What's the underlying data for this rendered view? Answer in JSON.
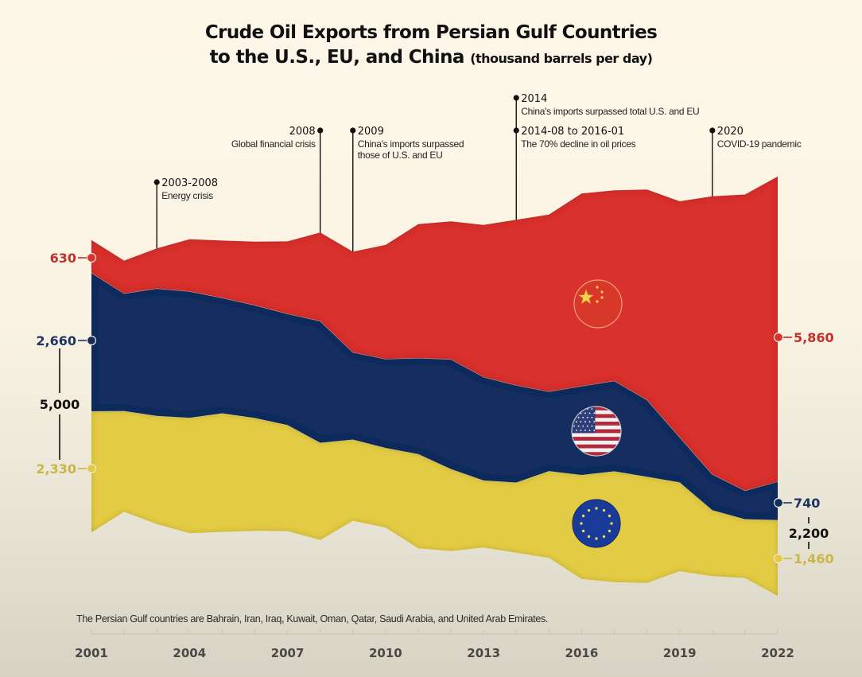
{
  "title": {
    "line1": "Crude Oil Exports from Persian Gulf Countries",
    "line2": "to the U.S., EU, and China",
    "units": "(thousand barrels per day)"
  },
  "footnote": "The Persian Gulf countries are Bahrain, Iran, Iraq, Kuwait, Oman, Qatar, Saudi Arabia, and United Arab Emirates.",
  "colors": {
    "china": "#d9332f",
    "us": "#152d5e",
    "eu": "#e3cc45",
    "china_label": "#c0302c",
    "us_label": "#1d3564",
    "eu_label": "#c9b548",
    "total_label": "#111111"
  },
  "chart_data": {
    "type": "area",
    "subtype": "streamgraph (stacked, centered baseline)",
    "title": "Crude Oil Exports from Persian Gulf Countries to the U.S., EU, and China (thousand barrels per day)",
    "xlabel": "",
    "ylabel": "thousand barrels per day",
    "x": [
      2001,
      2002,
      2003,
      2004,
      2005,
      2006,
      2007,
      2008,
      2009,
      2010,
      2011,
      2012,
      2013,
      2014,
      2015,
      2016,
      2017,
      2018,
      2019,
      2020,
      2021,
      2022
    ],
    "x_tick_labels": [
      "2001",
      "2004",
      "2007",
      "2010",
      "2013",
      "2016",
      "2019",
      "2022"
    ],
    "grid": false,
    "legend": "flag icons inside each band",
    "series": [
      {
        "name": "EU",
        "key": "eu",
        "flag": "eu-flag",
        "values": [
          2330,
          1940,
          2080,
          2220,
          2280,
          2170,
          2040,
          1870,
          1560,
          1530,
          1810,
          1580,
          1290,
          1350,
          1670,
          2000,
          2130,
          2040,
          1710,
          1270,
          1130,
          1460
        ]
      },
      {
        "name": "U.S.",
        "key": "us",
        "flag": "us-flag",
        "values": [
          2660,
          2260,
          2450,
          2430,
          2220,
          2170,
          2140,
          2340,
          1680,
          1710,
          1850,
          2110,
          1990,
          1870,
          1530,
          1710,
          1740,
          1480,
          870,
          690,
          550,
          740
        ]
      },
      {
        "name": "China",
        "key": "china",
        "flag": "china-flag",
        "values": [
          630,
          630,
          770,
          1000,
          1100,
          1220,
          1390,
          1700,
          1930,
          2190,
          2570,
          2650,
          2920,
          3180,
          3400,
          3700,
          3660,
          4040,
          4530,
          5340,
          5690,
          5860
        ]
      }
    ],
    "start_labels": [
      {
        "series": "china",
        "text": "630"
      },
      {
        "series": "us",
        "text": "2,660"
      },
      {
        "series": "eu",
        "text": "2,330"
      }
    ],
    "start_total": "5,000",
    "end_labels": [
      {
        "series": "china",
        "text": "5,860"
      },
      {
        "series": "us",
        "text": "740"
      },
      {
        "series": "eu",
        "text": "1,460"
      }
    ],
    "end_total": "2,200",
    "annotations": [
      {
        "year_text": "2003-2008",
        "text": [
          "Energy crisis"
        ],
        "x": 2003,
        "align": "left",
        "row": 3
      },
      {
        "year_text": "2008",
        "text": [
          "Global financial crisis"
        ],
        "x": 2008,
        "align": "right",
        "row": 2
      },
      {
        "year_text": "2009",
        "text": [
          "China's imports surpassed",
          "those of U.S. and EU"
        ],
        "x": 2009,
        "align": "left",
        "row": 2
      },
      {
        "year_text": "2014",
        "text": [
          "China's imports surpassed total U.S. and EU"
        ],
        "x": 2014,
        "align": "left",
        "row": 1
      },
      {
        "year_text": "2014-08 to 2016-01",
        "text": [
          "The 70% decline in oil prices"
        ],
        "x": 2014,
        "align": "left",
        "row": 2
      },
      {
        "year_text": "2020",
        "text": [
          "COVID-19 pandemic"
        ],
        "x": 2020,
        "align": "left",
        "row": 2
      }
    ]
  }
}
